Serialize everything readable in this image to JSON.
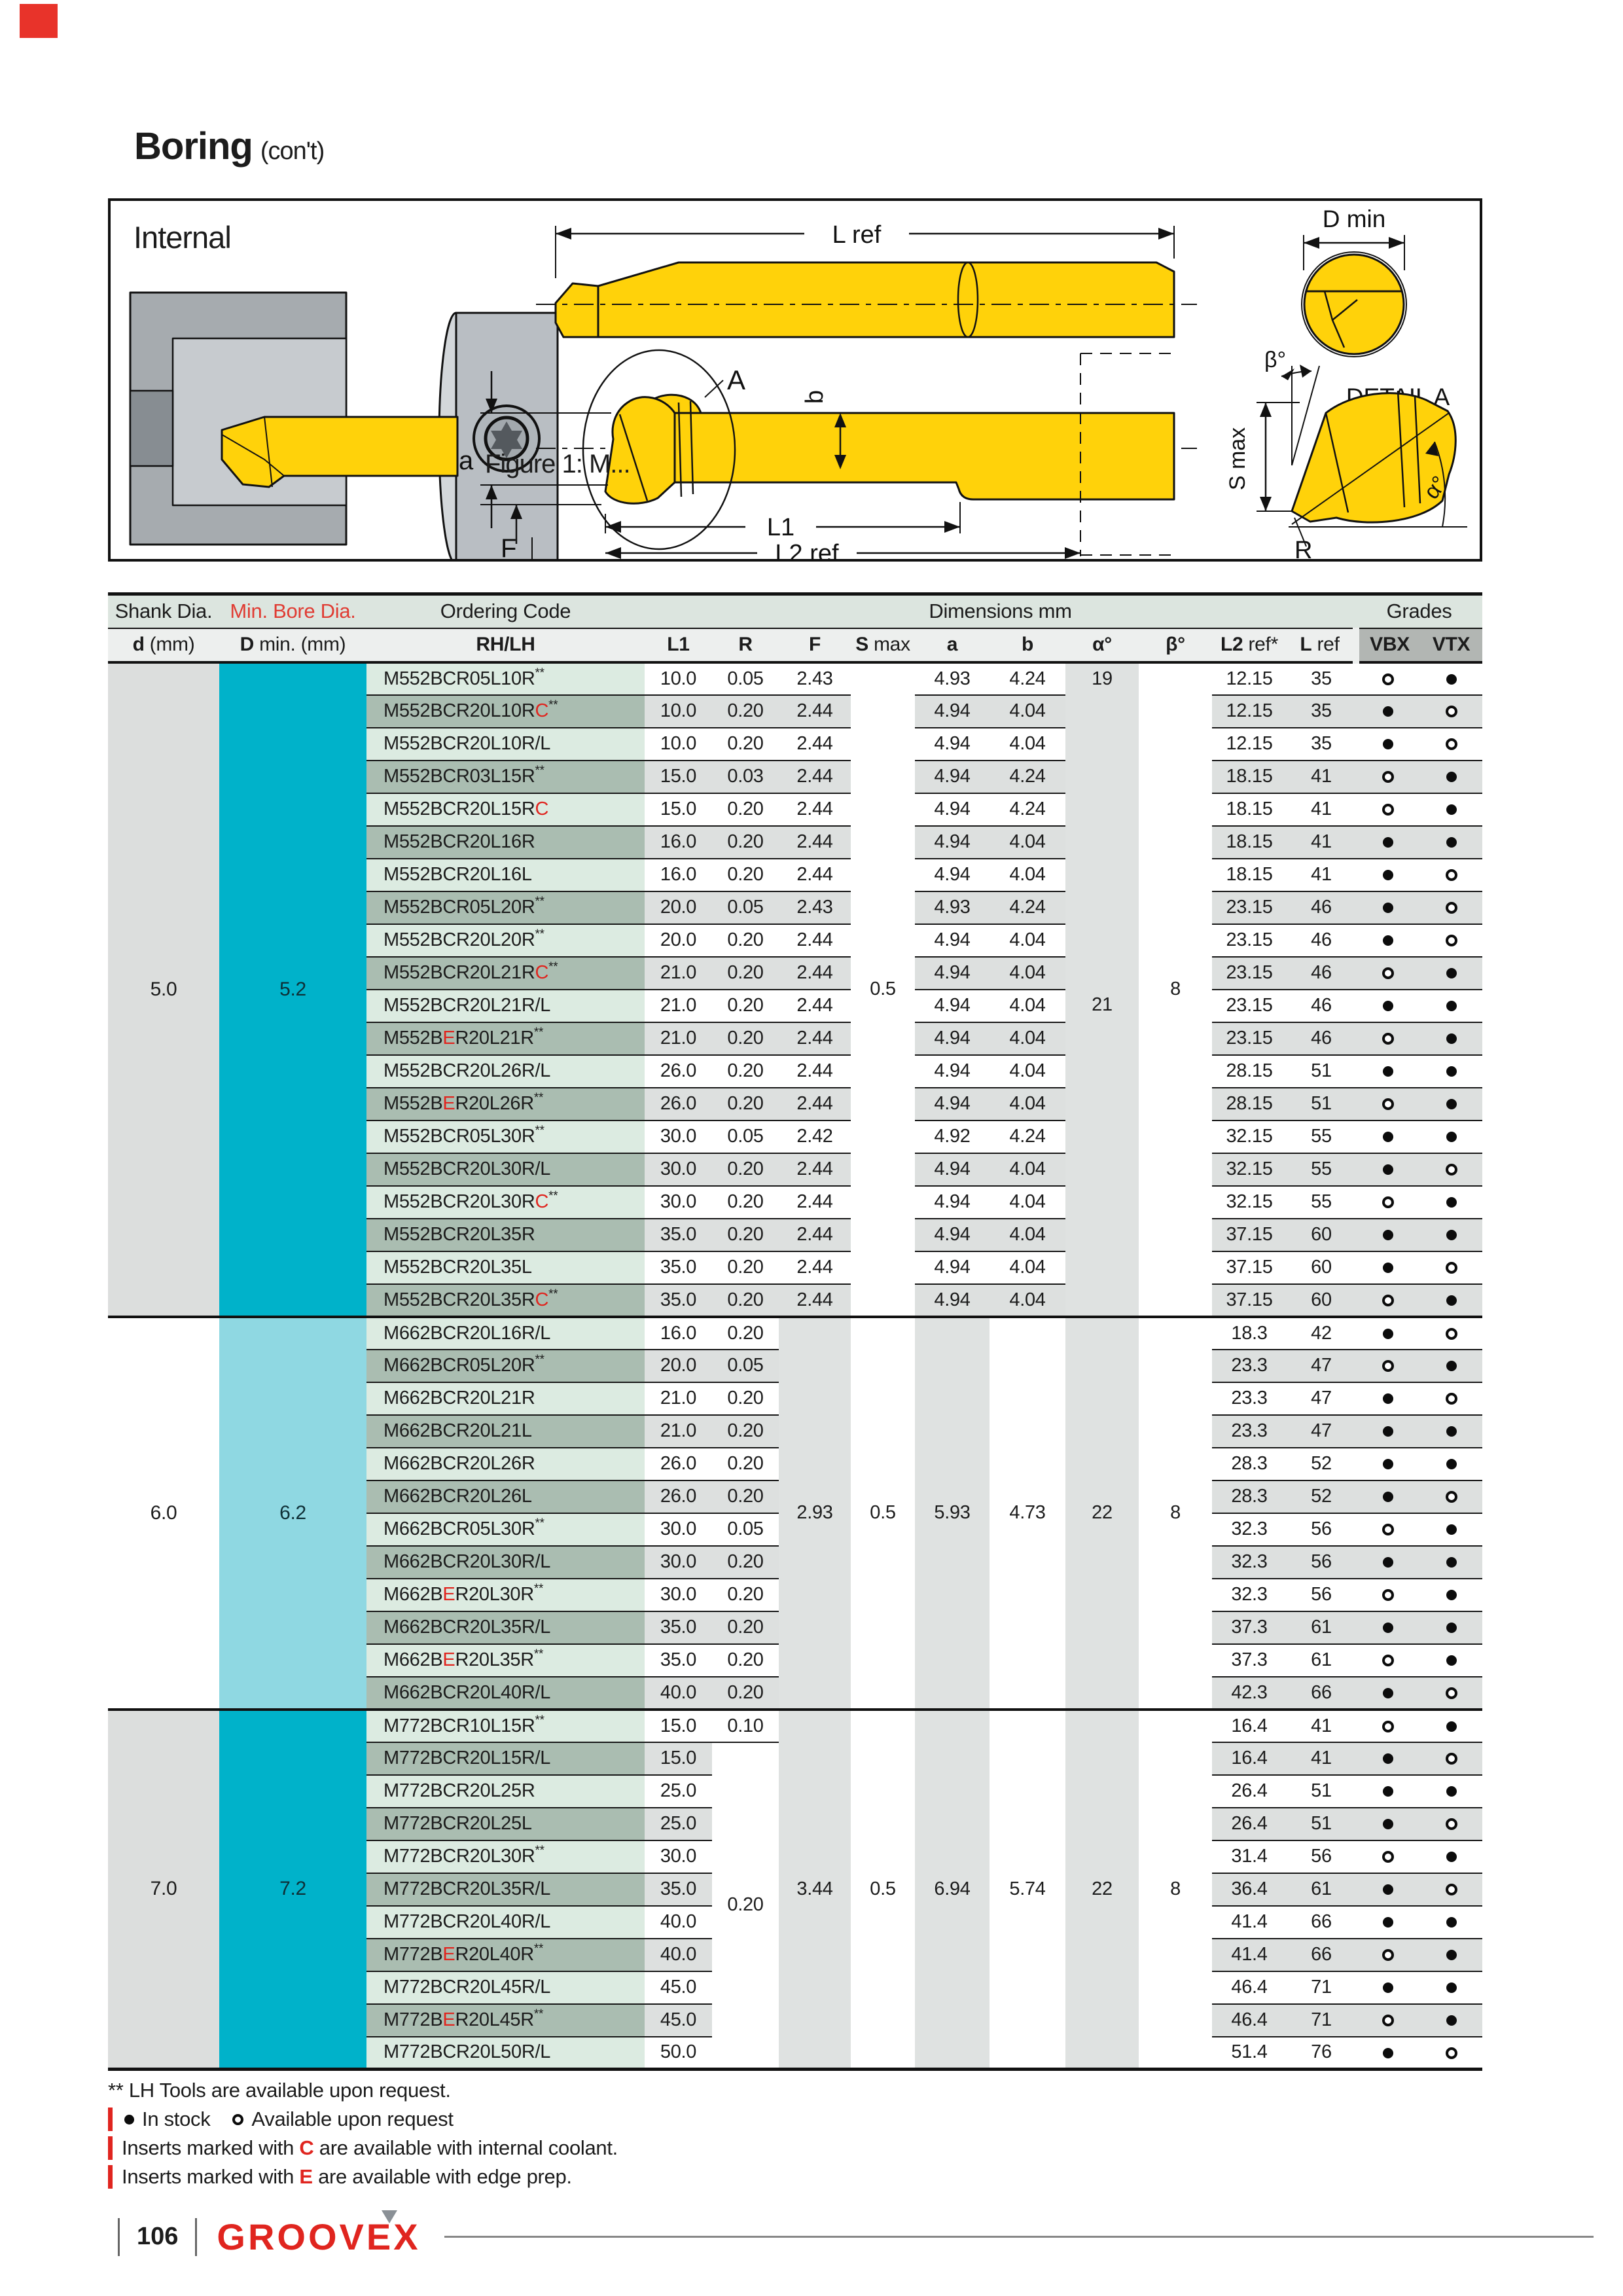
{
  "colors": {
    "accent_red": "#e0251f",
    "corner_red": "#e8332a",
    "cyan_strong": "#00b2ca",
    "cyan_light": "#8fd8e2",
    "code_row_light": "#dcebe1",
    "code_row_dark": "#aabdb1",
    "num_row_gray": "#dde0df",
    "merged_gray": "#dfe2e1",
    "header_green": "#dce5df",
    "header_gray": "#edefee",
    "grades_gray": "#b2b6b3",
    "tool_yellow": "#ffd20a"
  },
  "title": {
    "main": "Boring",
    "suffix": "(con't)"
  },
  "figure": {
    "heading": "Internal",
    "caption": "Figure 1: M...",
    "labels": {
      "lref": "L ref",
      "dmin": "D min",
      "detail": "DETAIL A",
      "beta": "β°",
      "alpha": "α°",
      "smax": "S max",
      "a": "a",
      "b": "b",
      "A": "A",
      "F": "F",
      "l1": "L1",
      "l2ref": "L2 ref",
      "R": "R"
    }
  },
  "table": {
    "header1": {
      "shank": "Shank Dia.",
      "minbore": "Min. Bore Dia.",
      "ordering": "Ordering Code",
      "dims": "Dimensions mm",
      "grades": "Grades"
    },
    "header2": [
      {
        "b": "d",
        "r": " (mm)"
      },
      {
        "b": "D",
        "r": " min. (mm)"
      },
      {
        "b": "RH/LH",
        "r": ""
      },
      {
        "b": "L1",
        "r": ""
      },
      {
        "b": "R",
        "r": ""
      },
      {
        "b": "F",
        "r": ""
      },
      {
        "b": "S",
        "r": " max"
      },
      {
        "b": "a",
        "r": ""
      },
      {
        "b": "b",
        "r": ""
      },
      {
        "b": "α°",
        "r": ""
      },
      {
        "b": "β°",
        "r": ""
      },
      {
        "b": "L2",
        "r": " ref*"
      },
      {
        "b": "L",
        "r": " ref"
      },
      {
        "b": "VBX",
        "r": ""
      },
      {
        "b": "VTX",
        "r": ""
      }
    ],
    "groups": [
      {
        "d": "5.0",
        "dmin": "5.2",
        "theme": {
          "d_bg": "#dcdedd",
          "dmin_bg": "#00b2ca"
        },
        "merged": [
          {
            "col": "smax",
            "from": 0,
            "span": 20,
            "v": "0.5",
            "bg": "w"
          },
          {
            "col": "alpha",
            "from": 0,
            "span": 1,
            "v": "19",
            "bg": "g"
          },
          {
            "col": "alpha",
            "from": 1,
            "span": 19,
            "v": "21",
            "bg": "g"
          },
          {
            "col": "beta",
            "from": 0,
            "span": 20,
            "v": "8",
            "bg": "w"
          }
        ],
        "rows": [
          {
            "code": "M552BCR05L10R**",
            "l1": "10.0",
            "r": "0.05",
            "f": "2.43",
            "a": "4.93",
            "b": "4.24",
            "l2": "12.15",
            "lref": "35",
            "vbx": "o",
            "vtx": "f"
          },
          {
            "code": "M552BCR20L10R{C}**",
            "l1": "10.0",
            "r": "0.20",
            "f": "2.44",
            "a": "4.94",
            "b": "4.04",
            "l2": "12.15",
            "lref": "35",
            "vbx": "f",
            "vtx": "o"
          },
          {
            "code": "M552BCR20L10R/L",
            "l1": "10.0",
            "r": "0.20",
            "f": "2.44",
            "a": "4.94",
            "b": "4.04",
            "l2": "12.15",
            "lref": "35",
            "vbx": "f",
            "vtx": "o"
          },
          {
            "code": "M552BCR03L15R**",
            "l1": "15.0",
            "r": "0.03",
            "f": "2.44",
            "a": "4.94",
            "b": "4.24",
            "l2": "18.15",
            "lref": "41",
            "vbx": "o",
            "vtx": "f"
          },
          {
            "code": "M552BCR20L15R{C}",
            "l1": "15.0",
            "r": "0.20",
            "f": "2.44",
            "a": "4.94",
            "b": "4.24",
            "l2": "18.15",
            "lref": "41",
            "vbx": "o",
            "vtx": "f"
          },
          {
            "code": "M552BCR20L16R",
            "l1": "16.0",
            "r": "0.20",
            "f": "2.44",
            "a": "4.94",
            "b": "4.04",
            "l2": "18.15",
            "lref": "41",
            "vbx": "f",
            "vtx": "f"
          },
          {
            "code": "M552BCR20L16L",
            "l1": "16.0",
            "r": "0.20",
            "f": "2.44",
            "a": "4.94",
            "b": "4.04",
            "l2": "18.15",
            "lref": "41",
            "vbx": "f",
            "vtx": "o"
          },
          {
            "code": "M552BCR05L20R**",
            "l1": "20.0",
            "r": "0.05",
            "f": "2.43",
            "a": "4.93",
            "b": "4.24",
            "l2": "23.15",
            "lref": "46",
            "vbx": "f",
            "vtx": "o"
          },
          {
            "code": "M552BCR20L20R**",
            "l1": "20.0",
            "r": "0.20",
            "f": "2.44",
            "a": "4.94",
            "b": "4.04",
            "l2": "23.15",
            "lref": "46",
            "vbx": "f",
            "vtx": "o"
          },
          {
            "code": "M552BCR20L21R{C}**",
            "l1": "21.0",
            "r": "0.20",
            "f": "2.44",
            "a": "4.94",
            "b": "4.04",
            "l2": "23.15",
            "lref": "46",
            "vbx": "o",
            "vtx": "f"
          },
          {
            "code": "M552BCR20L21R/L",
            "l1": "21.0",
            "r": "0.20",
            "f": "2.44",
            "a": "4.94",
            "b": "4.04",
            "l2": "23.15",
            "lref": "46",
            "vbx": "f",
            "vtx": "f"
          },
          {
            "code": "M552B{E}R20L21R**",
            "l1": "21.0",
            "r": "0.20",
            "f": "2.44",
            "a": "4.94",
            "b": "4.04",
            "l2": "23.15",
            "lref": "46",
            "vbx": "o",
            "vtx": "f"
          },
          {
            "code": "M552BCR20L26R/L",
            "l1": "26.0",
            "r": "0.20",
            "f": "2.44",
            "a": "4.94",
            "b": "4.04",
            "l2": "28.15",
            "lref": "51",
            "vbx": "f",
            "vtx": "f"
          },
          {
            "code": "M552B{E}R20L26R**",
            "l1": "26.0",
            "r": "0.20",
            "f": "2.44",
            "a": "4.94",
            "b": "4.04",
            "l2": "28.15",
            "lref": "51",
            "vbx": "o",
            "vtx": "f"
          },
          {
            "code": "M552BCR05L30R**",
            "l1": "30.0",
            "r": "0.05",
            "f": "2.42",
            "a": "4.92",
            "b": "4.24",
            "l2": "32.15",
            "lref": "55",
            "vbx": "f",
            "vtx": "f"
          },
          {
            "code": "M552BCR20L30R/L",
            "l1": "30.0",
            "r": "0.20",
            "f": "2.44",
            "a": "4.94",
            "b": "4.04",
            "l2": "32.15",
            "lref": "55",
            "vbx": "f",
            "vtx": "o"
          },
          {
            "code": "M552BCR20L30R{C}**",
            "l1": "30.0",
            "r": "0.20",
            "f": "2.44",
            "a": "4.94",
            "b": "4.04",
            "l2": "32.15",
            "lref": "55",
            "vbx": "o",
            "vtx": "f"
          },
          {
            "code": "M552BCR20L35R",
            "l1": "35.0",
            "r": "0.20",
            "f": "2.44",
            "a": "4.94",
            "b": "4.04",
            "l2": "37.15",
            "lref": "60",
            "vbx": "f",
            "vtx": "f"
          },
          {
            "code": "M552BCR20L35L",
            "l1": "35.0",
            "r": "0.20",
            "f": "2.44",
            "a": "4.94",
            "b": "4.04",
            "l2": "37.15",
            "lref": "60",
            "vbx": "f",
            "vtx": "o"
          },
          {
            "code": "M552BCR20L35R{C}**",
            "l1": "35.0",
            "r": "0.20",
            "f": "2.44",
            "a": "4.94",
            "b": "4.04",
            "l2": "37.15",
            "lref": "60",
            "vbx": "o",
            "vtx": "f"
          }
        ]
      },
      {
        "d": "6.0",
        "dmin": "6.2",
        "theme": {
          "d_bg": "#ffffff",
          "dmin_bg": "#8fd8e2"
        },
        "merged": [
          {
            "col": "f",
            "from": 0,
            "span": 12,
            "v": "2.93",
            "bg": "g"
          },
          {
            "col": "smax",
            "from": 0,
            "span": 12,
            "v": "0.5",
            "bg": "w"
          },
          {
            "col": "a",
            "from": 0,
            "span": 12,
            "v": "5.93",
            "bg": "g"
          },
          {
            "col": "b",
            "from": 0,
            "span": 12,
            "v": "4.73",
            "bg": "w"
          },
          {
            "col": "alpha",
            "from": 0,
            "span": 12,
            "v": "22",
            "bg": "g"
          },
          {
            "col": "beta",
            "from": 0,
            "span": 12,
            "v": "8",
            "bg": "w"
          }
        ],
        "rows": [
          {
            "code": "M662BCR20L16R/L",
            "l1": "16.0",
            "r": "0.20",
            "l2": "18.3",
            "lref": "42",
            "vbx": "f",
            "vtx": "o"
          },
          {
            "code": "M662BCR05L20R**",
            "l1": "20.0",
            "r": "0.05",
            "l2": "23.3",
            "lref": "47",
            "vbx": "o",
            "vtx": "f"
          },
          {
            "code": "M662BCR20L21R",
            "l1": "21.0",
            "r": "0.20",
            "l2": "23.3",
            "lref": "47",
            "vbx": "f",
            "vtx": "o"
          },
          {
            "code": "M662BCR20L21L",
            "l1": "21.0",
            "r": "0.20",
            "l2": "23.3",
            "lref": "47",
            "vbx": "f",
            "vtx": "f"
          },
          {
            "code": "M662BCR20L26R",
            "l1": "26.0",
            "r": "0.20",
            "l2": "28.3",
            "lref": "52",
            "vbx": "f",
            "vtx": "f"
          },
          {
            "code": "M662BCR20L26L",
            "l1": "26.0",
            "r": "0.20",
            "l2": "28.3",
            "lref": "52",
            "vbx": "f",
            "vtx": "o"
          },
          {
            "code": "M662BCR05L30R**",
            "l1": "30.0",
            "r": "0.05",
            "l2": "32.3",
            "lref": "56",
            "vbx": "o",
            "vtx": "f"
          },
          {
            "code": "M662BCR20L30R/L",
            "l1": "30.0",
            "r": "0.20",
            "l2": "32.3",
            "lref": "56",
            "vbx": "f",
            "vtx": "f"
          },
          {
            "code": "M662B{E}R20L30R**",
            "l1": "30.0",
            "r": "0.20",
            "l2": "32.3",
            "lref": "56",
            "vbx": "o",
            "vtx": "f"
          },
          {
            "code": "M662BCR20L35R/L",
            "l1": "35.0",
            "r": "0.20",
            "l2": "37.3",
            "lref": "61",
            "vbx": "f",
            "vtx": "f"
          },
          {
            "code": "M662B{E}R20L35R**",
            "l1": "35.0",
            "r": "0.20",
            "l2": "37.3",
            "lref": "61",
            "vbx": "o",
            "vtx": "f"
          },
          {
            "code": "M662BCR20L40R/L",
            "l1": "40.0",
            "r": "0.20",
            "l2": "42.3",
            "lref": "66",
            "vbx": "f",
            "vtx": "o"
          }
        ]
      },
      {
        "d": "7.0",
        "dmin": "7.2",
        "theme": {
          "d_bg": "#dcdedd",
          "dmin_bg": "#00b2ca"
        },
        "merged": [
          {
            "col": "r",
            "from": 1,
            "span": 10,
            "v": "0.20",
            "bg": "w"
          },
          {
            "col": "f",
            "from": 0,
            "span": 11,
            "v": "3.44",
            "bg": "g"
          },
          {
            "col": "smax",
            "from": 0,
            "span": 11,
            "v": "0.5",
            "bg": "w"
          },
          {
            "col": "a",
            "from": 0,
            "span": 11,
            "v": "6.94",
            "bg": "g"
          },
          {
            "col": "b",
            "from": 0,
            "span": 11,
            "v": "5.74",
            "bg": "w"
          },
          {
            "col": "alpha",
            "from": 0,
            "span": 11,
            "v": "22",
            "bg": "g"
          },
          {
            "col": "beta",
            "from": 0,
            "span": 11,
            "v": "8",
            "bg": "w"
          }
        ],
        "rows": [
          {
            "code": "M772BCR10L15R**",
            "l1": "15.0",
            "r": "0.10",
            "l2": "16.4",
            "lref": "41",
            "vbx": "o",
            "vtx": "f"
          },
          {
            "code": "M772BCR20L15R/L",
            "l1": "15.0",
            "l2": "16.4",
            "lref": "41",
            "vbx": "f",
            "vtx": "o"
          },
          {
            "code": "M772BCR20L25R",
            "l1": "25.0",
            "l2": "26.4",
            "lref": "51",
            "vbx": "f",
            "vtx": "f"
          },
          {
            "code": "M772BCR20L25L",
            "l1": "25.0",
            "l2": "26.4",
            "lref": "51",
            "vbx": "f",
            "vtx": "o"
          },
          {
            "code": "M772BCR20L30R**",
            "l1": "30.0",
            "l2": "31.4",
            "lref": "56",
            "vbx": "o",
            "vtx": "f"
          },
          {
            "code": "M772BCR20L35R/L",
            "l1": "35.0",
            "l2": "36.4",
            "lref": "61",
            "vbx": "f",
            "vtx": "o"
          },
          {
            "code": "M772BCR20L40R/L",
            "l1": "40.0",
            "l2": "41.4",
            "lref": "66",
            "vbx": "f",
            "vtx": "f"
          },
          {
            "code": "M772B{E}R20L40R**",
            "l1": "40.0",
            "l2": "41.4",
            "lref": "66",
            "vbx": "o",
            "vtx": "f"
          },
          {
            "code": "M772BCR20L45R/L",
            "l1": "45.0",
            "l2": "46.4",
            "lref": "71",
            "vbx": "f",
            "vtx": "f"
          },
          {
            "code": "M772B{E}R20L45R**",
            "l1": "45.0",
            "l2": "46.4",
            "lref": "71",
            "vbx": "o",
            "vtx": "f"
          },
          {
            "code": "M772BCR20L50R/L",
            "l1": "50.0",
            "l2": "51.4",
            "lref": "76",
            "vbx": "f",
            "vtx": "o"
          }
        ]
      }
    ]
  },
  "notes": {
    "lh": "** LH Tools are available upon request.",
    "stock_filled": "In stock",
    "stock_open": "Available upon request",
    "coolant": {
      "pre": "Inserts marked with ",
      "letter": "C",
      "post": " are available with internal coolant."
    },
    "edge": {
      "pre": "Inserts marked with ",
      "letter": "E",
      "post": " are available with edge prep."
    }
  },
  "footer": {
    "page": "106",
    "logo": "GROOVEX"
  }
}
